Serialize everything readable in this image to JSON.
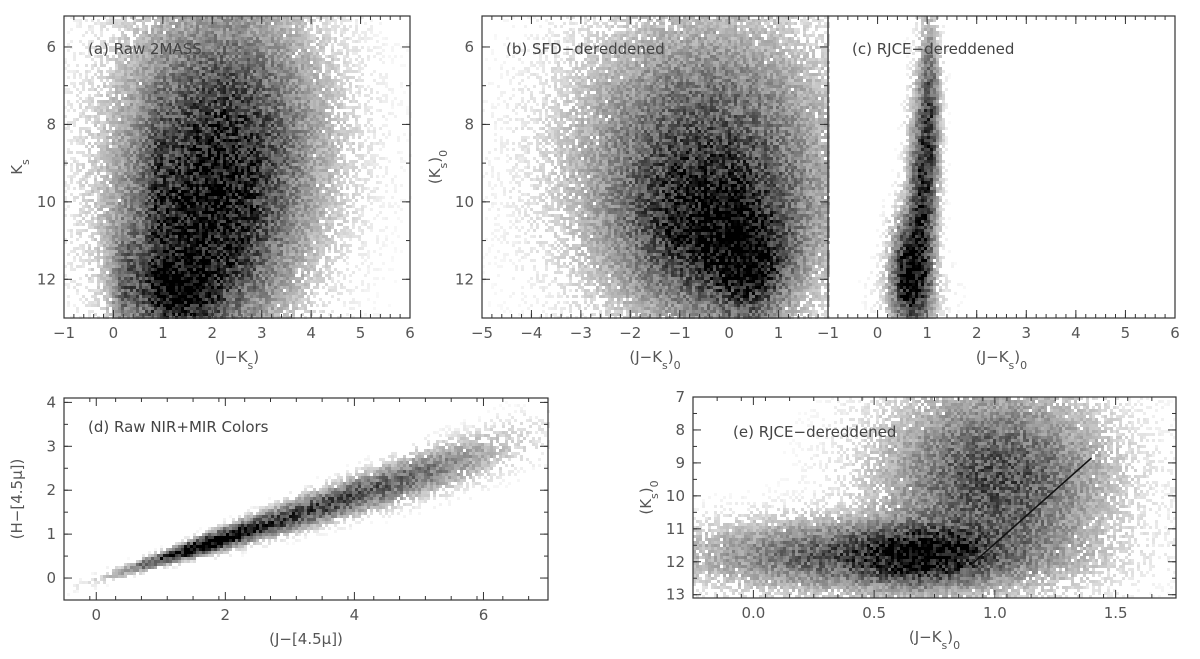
{
  "chart_data": [
    {
      "id": "a",
      "type": "heatmap",
      "panel_label": "(a) Raw 2MASS",
      "xlabel": "(J−K_s)",
      "ylabel": "K_s",
      "xlim": [
        -1,
        6
      ],
      "ylim": [
        13,
        5.2
      ],
      "y_inverted": true,
      "xticks": [
        -1,
        0,
        1,
        2,
        3,
        4,
        5,
        6
      ],
      "yticks": [
        6,
        8,
        10,
        12
      ],
      "density_components": [
        {
          "x": 0.25,
          "y": 12.1,
          "sx": 0.18,
          "sy": 0.9,
          "w": 0.1
        },
        {
          "x": 1.3,
          "y": 12.3,
          "sx": 0.5,
          "sy": 0.6,
          "w": 0.3
        },
        {
          "x": 1.8,
          "y": 11.0,
          "sx": 0.9,
          "sy": 1.5,
          "w": 0.25
        },
        {
          "x": 0.9,
          "y": 10.5,
          "sx": 0.12,
          "sy": 2.0,
          "w": 0.08
        },
        {
          "x": 2.2,
          "y": 8.5,
          "sx": 1.1,
          "sy": 2.0,
          "w": 0.27
        }
      ]
    },
    {
      "id": "b",
      "type": "heatmap",
      "panel_label": "(b) SFD−dereddened",
      "xlabel": "(J−K_s)_0",
      "ylabel": "(K_s)_0",
      "xlim": [
        -5,
        2
      ],
      "ylim": [
        13,
        5.2
      ],
      "y_inverted": true,
      "xticks": [
        -5,
        -4,
        -3,
        -2,
        -1,
        0,
        1
      ],
      "yticks": [
        6,
        8,
        10,
        12
      ],
      "density_components": [
        {
          "x": 0.4,
          "y": 11.7,
          "sx": 0.45,
          "sy": 0.8,
          "w": 0.35
        },
        {
          "x": -0.3,
          "y": 10.8,
          "sx": 1.0,
          "sy": 1.2,
          "w": 0.35
        },
        {
          "x": -0.5,
          "y": 9.0,
          "sx": 1.4,
          "sy": 2.0,
          "w": 0.3
        }
      ]
    },
    {
      "id": "c",
      "type": "heatmap",
      "panel_label": "(c) RJCE−dereddened",
      "xlabel": "(J−K_s)_0",
      "ylabel": "",
      "xlim": [
        -1,
        6
      ],
      "ylim": [
        13,
        5.2
      ],
      "y_inverted": true,
      "xticks": [
        -1,
        0,
        1,
        2,
        3,
        4,
        5,
        6
      ],
      "yticks": [],
      "density_components": [
        {
          "x": 0.65,
          "y": 11.8,
          "sx": 0.2,
          "sy": 0.8,
          "w": 0.45
        },
        {
          "x": 0.9,
          "y": 10.0,
          "sx": 0.15,
          "sy": 1.5,
          "w": 0.3
        },
        {
          "x": 1.05,
          "y": 7.8,
          "sx": 0.12,
          "sy": 1.4,
          "w": 0.2
        },
        {
          "x": 0.7,
          "y": 12.3,
          "sx": 0.35,
          "sy": 0.5,
          "w": 0.05
        }
      ]
    },
    {
      "id": "d",
      "type": "heatmap",
      "panel_label": "(d) Raw NIR+MIR Colors",
      "xlabel": "(J−[4.5μ])",
      "ylabel": "(H−[4.5μ])",
      "xlim": [
        -0.5,
        7
      ],
      "ylim": [
        -0.5,
        4.1
      ],
      "y_inverted": false,
      "xticks": [
        0,
        2,
        4,
        6
      ],
      "yticks": [
        0,
        1,
        2,
        3,
        4
      ],
      "relation": {
        "slope": 0.48,
        "intercept": -0.05,
        "scatter": 0.08
      },
      "density_components": [
        {
          "x": 1.6,
          "sx": 0.6,
          "w": 0.55
        },
        {
          "x": 3.0,
          "sx": 1.0,
          "w": 0.3
        },
        {
          "x": 4.8,
          "sx": 0.9,
          "w": 0.15
        }
      ]
    },
    {
      "id": "e",
      "type": "heatmap",
      "panel_label": "(e) RJCE−dereddened",
      "xlabel": "(J−K_s)_0",
      "ylabel": "(K_s)_0",
      "xlim": [
        -0.25,
        1.75
      ],
      "ylim": [
        13.1,
        7
      ],
      "y_inverted": true,
      "xticks": [
        0.0,
        0.5,
        1.0,
        1.5
      ],
      "xtick_labels": [
        "0.0",
        "0.5",
        "1.0",
        "1.5"
      ],
      "yticks": [
        7,
        8,
        9,
        10,
        11,
        12,
        13
      ],
      "density_components": [
        {
          "x": 0.7,
          "y": 11.8,
          "sx": 0.15,
          "sy": 0.5,
          "w": 0.4
        },
        {
          "x": 0.5,
          "y": 11.8,
          "sx": 0.4,
          "sy": 0.6,
          "w": 0.3
        },
        {
          "x": 1.0,
          "y": 9.5,
          "sx": 0.25,
          "sy": 1.5,
          "w": 0.3
        }
      ],
      "line": {
        "x": [
          0.9,
          1.4
        ],
        "y": [
          12.1,
          8.85
        ]
      }
    }
  ]
}
